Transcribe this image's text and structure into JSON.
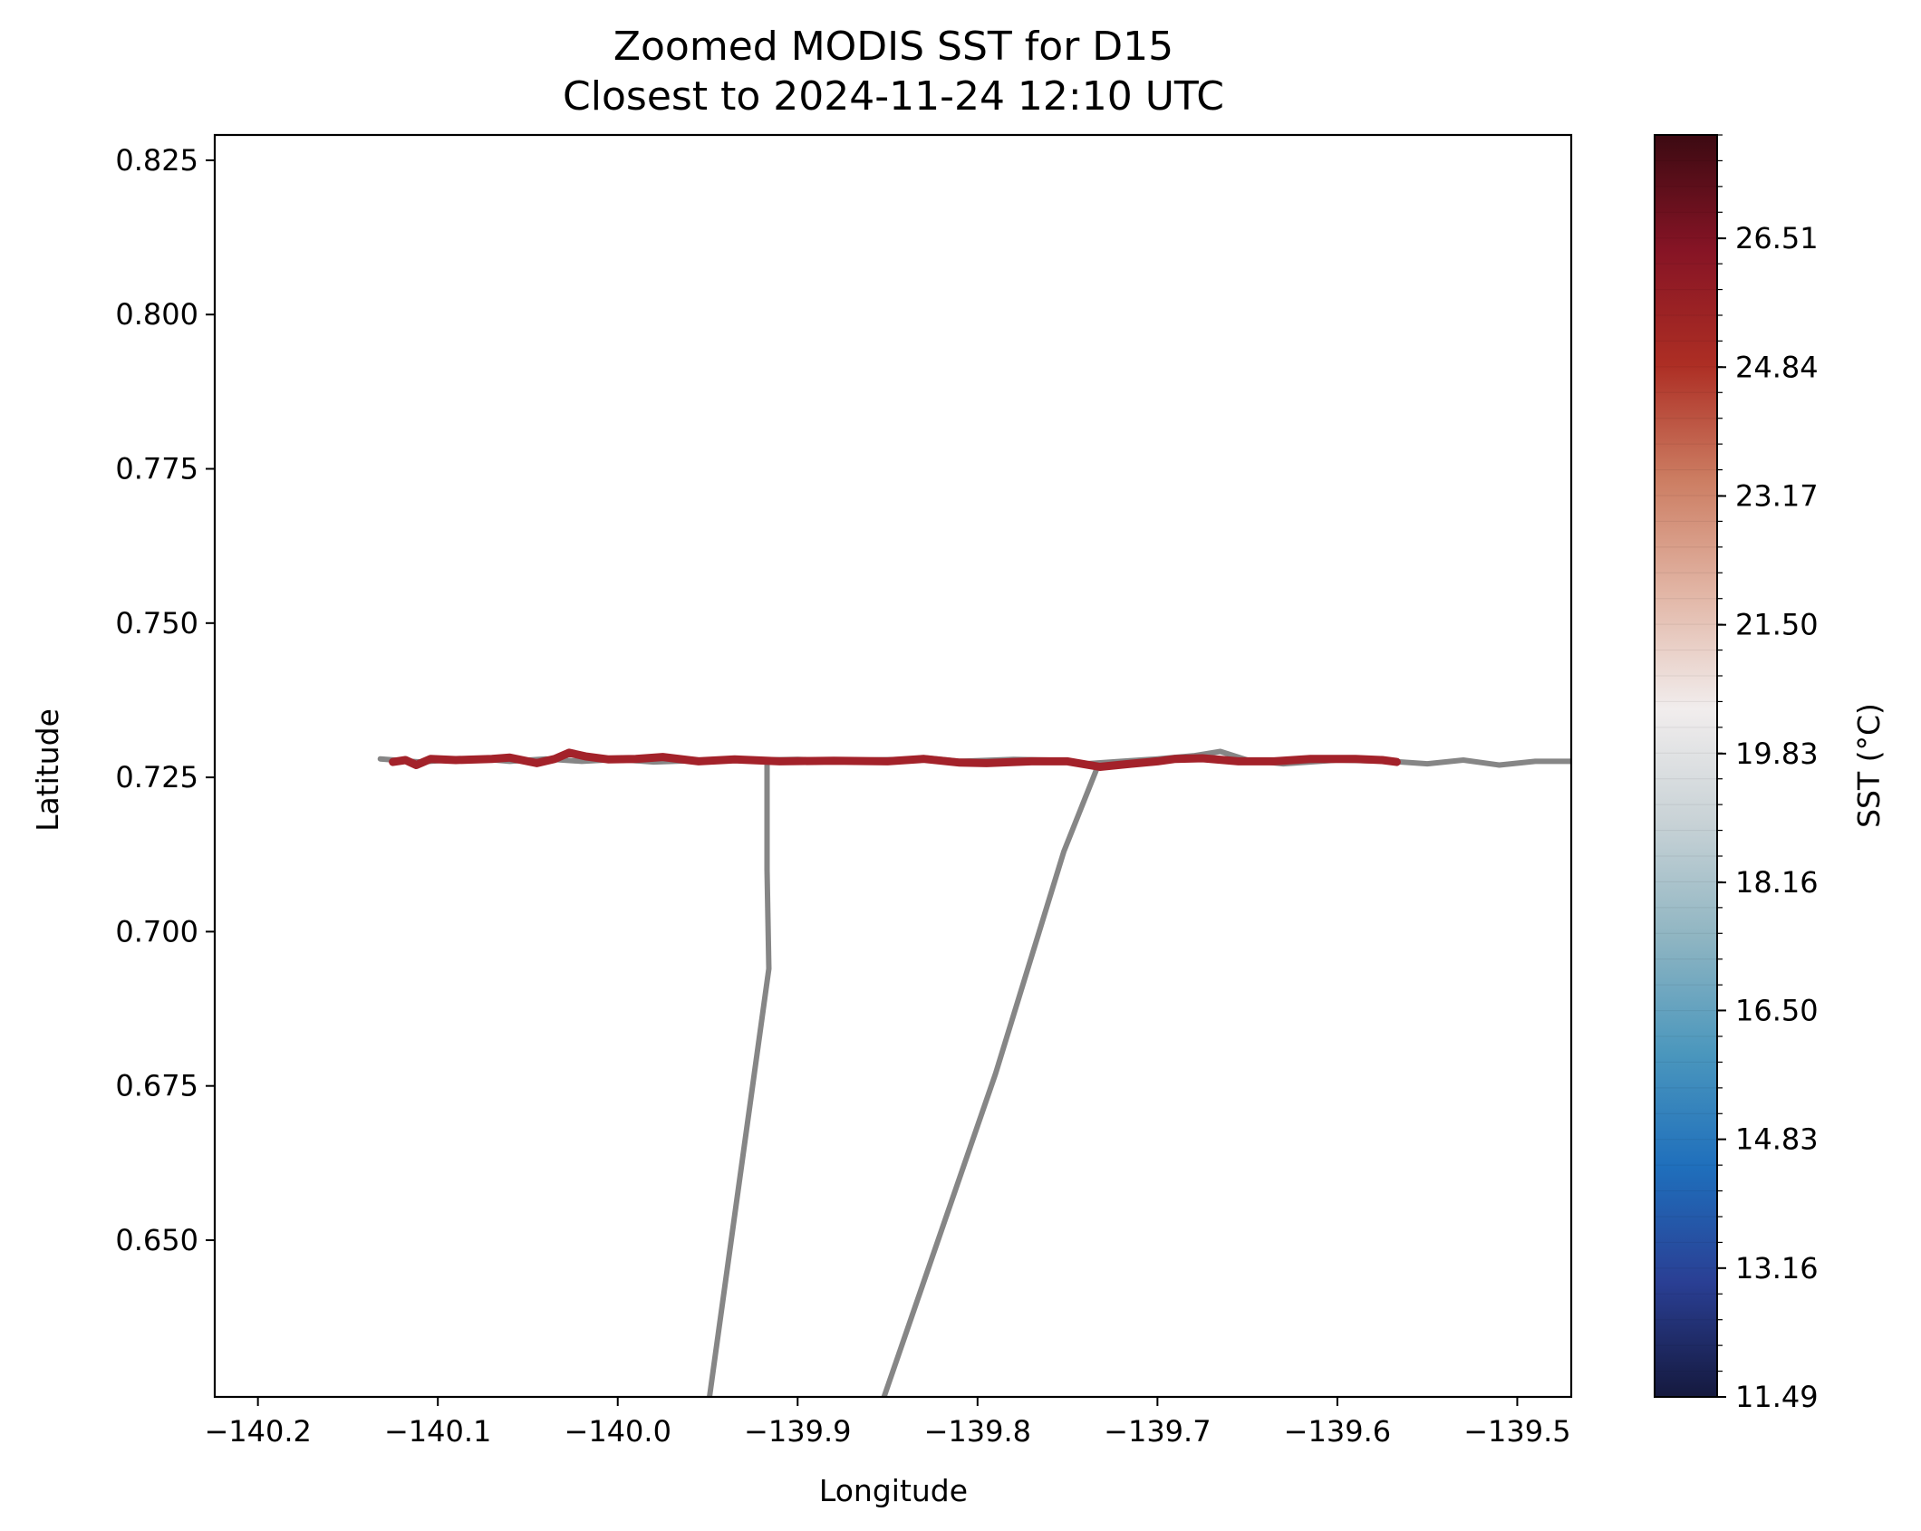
{
  "chart_data": {
    "type": "line",
    "title": "Zoomed MODIS SST for D15",
    "subtitle": "Closest to 2024-11-24 12:10 UTC",
    "xlabel": "Longitude",
    "ylabel": "Latitude",
    "xlim": [
      -140.224,
      -139.47
    ],
    "ylim": [
      0.6246,
      0.8291
    ],
    "xticks": [
      -140.2,
      -140.1,
      -140.0,
      -139.9,
      -139.8,
      -139.7,
      -139.6,
      -139.5
    ],
    "xtick_labels": [
      "−140.2",
      "−140.1",
      "−140.0",
      "−139.9",
      "−139.8",
      "−139.7",
      "−139.6",
      "−139.5"
    ],
    "yticks": [
      0.65,
      0.675,
      0.7,
      0.725,
      0.75,
      0.775,
      0.8,
      0.825
    ],
    "ytick_labels": [
      "0.650",
      "0.675",
      "0.700",
      "0.725",
      "0.750",
      "0.775",
      "0.800",
      "0.825"
    ],
    "grid": false,
    "series": [
      {
        "role": "background-tracks",
        "color": "#808080",
        "points": [
          [
            -140.132,
            0.728
          ],
          [
            -140.11,
            0.7275
          ],
          [
            -140.08,
            0.7281
          ],
          [
            -140.06,
            0.7276
          ],
          [
            -140.04,
            0.728
          ],
          [
            -140.02,
            0.7276
          ],
          [
            -140.0,
            0.7279
          ],
          [
            -139.98,
            0.7275
          ],
          [
            -139.96,
            0.7277
          ],
          [
            -139.94,
            0.728
          ],
          [
            -139.92,
            0.7278
          ],
          [
            -139.9,
            0.7279
          ],
          [
            -139.88,
            0.7277
          ],
          [
            -139.86,
            0.7278
          ],
          [
            -139.84,
            0.7279
          ],
          [
            -139.83,
            0.7282
          ],
          [
            -139.81,
            0.7276
          ],
          [
            -139.78,
            0.7279
          ],
          [
            -139.76,
            0.7278
          ],
          [
            -139.74,
            0.7272
          ],
          [
            -139.72,
            0.7276
          ],
          [
            -139.7,
            0.728
          ],
          [
            -139.68,
            0.7285
          ],
          [
            -139.665,
            0.7292
          ],
          [
            -139.65,
            0.7278
          ],
          [
            -139.63,
            0.7272
          ],
          [
            -139.6,
            0.7278
          ],
          [
            -139.57,
            0.7276
          ],
          [
            -139.55,
            0.7272
          ],
          [
            -139.53,
            0.7278
          ],
          [
            -139.51,
            0.727
          ],
          [
            -139.49,
            0.7276
          ],
          [
            -139.47,
            0.7276
          ]
        ]
      },
      {
        "role": "background-tracks",
        "color": "#808080",
        "points": [
          [
            -139.917,
            0.727
          ],
          [
            -139.917,
            0.71
          ],
          [
            -139.916,
            0.694
          ],
          [
            -139.949,
            0.6246
          ]
        ]
      },
      {
        "role": "background-tracks",
        "color": "#808080",
        "points": [
          [
            -139.734,
            0.7262
          ],
          [
            -139.752,
            0.713
          ],
          [
            -139.79,
            0.677
          ],
          [
            -139.852,
            0.6246
          ]
        ]
      },
      {
        "role": "drifter-track",
        "color": "#a3222a",
        "points": [
          [
            -140.125,
            0.7275
          ],
          [
            -140.118,
            0.7278
          ],
          [
            -140.112,
            0.727
          ],
          [
            -140.104,
            0.728
          ],
          [
            -140.09,
            0.7278
          ],
          [
            -140.07,
            0.728
          ],
          [
            -140.06,
            0.7282
          ],
          [
            -140.045,
            0.7273
          ],
          [
            -140.035,
            0.728
          ],
          [
            -140.027,
            0.729
          ],
          [
            -140.018,
            0.7284
          ],
          [
            -140.005,
            0.7279
          ],
          [
            -139.99,
            0.728
          ],
          [
            -139.975,
            0.7283
          ],
          [
            -139.955,
            0.7276
          ],
          [
            -139.935,
            0.7279
          ],
          [
            -139.91,
            0.7276
          ],
          [
            -139.88,
            0.7277
          ],
          [
            -139.85,
            0.7276
          ],
          [
            -139.83,
            0.728
          ],
          [
            -139.81,
            0.7274
          ],
          [
            -139.795,
            0.7273
          ],
          [
            -139.77,
            0.7276
          ],
          [
            -139.75,
            0.7276
          ],
          [
            -139.732,
            0.7267
          ],
          [
            -139.715,
            0.7272
          ],
          [
            -139.7,
            0.7276
          ],
          [
            -139.69,
            0.728
          ],
          [
            -139.675,
            0.7281
          ],
          [
            -139.655,
            0.7276
          ],
          [
            -139.635,
            0.7276
          ],
          [
            -139.615,
            0.728
          ],
          [
            -139.59,
            0.728
          ],
          [
            -139.575,
            0.7278
          ],
          [
            -139.567,
            0.7275
          ]
        ]
      }
    ],
    "colorbar": {
      "label": "SST (°C)",
      "range": [
        11.49,
        27.85
      ],
      "levels": 49,
      "tick_values": [
        11.49,
        13.16,
        14.83,
        16.5,
        18.16,
        19.83,
        21.5,
        23.17,
        24.84,
        26.51
      ],
      "tick_labels": [
        "11.49",
        "13.16",
        "14.83",
        "16.50",
        "18.16",
        "19.83",
        "21.50",
        "23.17",
        "24.84",
        "26.51"
      ],
      "colors": [
        "#15193e",
        "#2a3f94",
        "#1f6fbc",
        "#4b97bd",
        "#8fb5c2",
        "#c8d2d6",
        "#f1eded",
        "#e2b6a6",
        "#cc7d62",
        "#ad2e24",
        "#861425",
        "#3c0a12"
      ]
    }
  }
}
